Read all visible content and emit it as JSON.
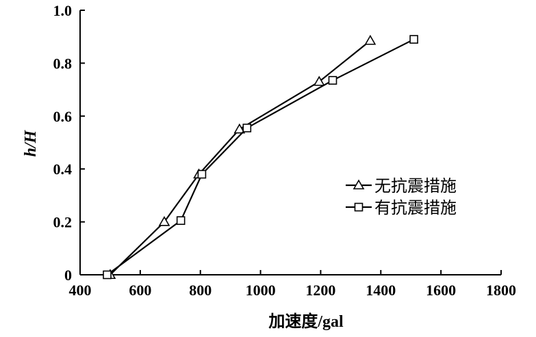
{
  "chart_data": {
    "type": "line",
    "xlabel": "加速度/gal",
    "ylabel": "h/H",
    "xlim": [
      400,
      1800
    ],
    "ylim": [
      0,
      1.0
    ],
    "xticks": [
      400,
      600,
      800,
      1000,
      1200,
      1400,
      1600,
      1800
    ],
    "yticks": [
      0,
      0.2,
      0.4,
      0.6,
      0.8,
      1.0
    ],
    "xtick_labels": [
      "400",
      "600",
      "800",
      "1000",
      "1200",
      "1400",
      "1600",
      "1800"
    ],
    "ytick_labels": [
      "0",
      "0.2",
      "0.4",
      "0.6",
      "0.8",
      "1.0"
    ],
    "legend_position": "right",
    "series": [
      {
        "name": "无抗震措施",
        "marker": "triangle",
        "x": [
          500,
          680,
          795,
          930,
          1195,
          1365
        ],
        "y": [
          0,
          0.2,
          0.38,
          0.55,
          0.73,
          0.885
        ]
      },
      {
        "name": "有抗震措施",
        "marker": "square",
        "x": [
          490,
          735,
          805,
          955,
          1240,
          1510
        ],
        "y": [
          0,
          0.205,
          0.38,
          0.555,
          0.735,
          0.89
        ]
      }
    ]
  }
}
